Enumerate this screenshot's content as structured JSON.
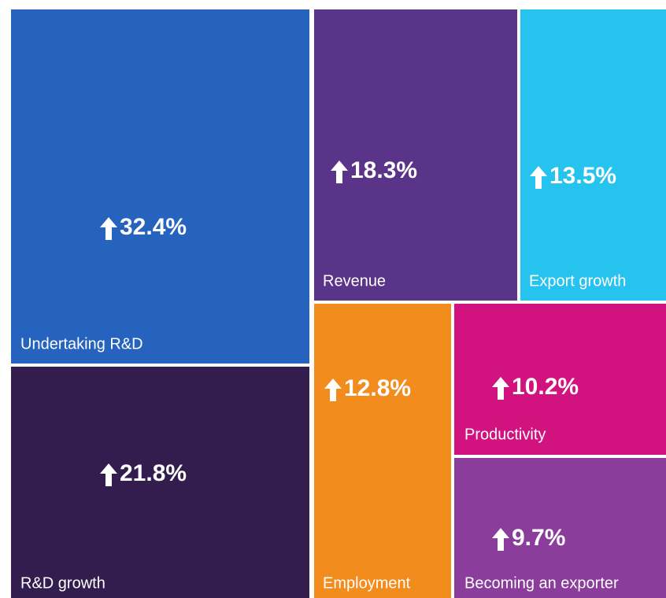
{
  "chart_data": {
    "type": "treemap",
    "categories": [
      "Undertaking R&D",
      "R&D growth",
      "Revenue",
      "Export growth",
      "Employment",
      "Productivity",
      "Becoming an exporter"
    ],
    "values": [
      32.4,
      21.8,
      18.3,
      13.5,
      12.8,
      10.2,
      9.7
    ],
    "value_labels": [
      "32.4%",
      "21.8%",
      "18.3%",
      "13.5%",
      "12.8%",
      "10.2%",
      "9.7%"
    ],
    "colors": [
      "#2563be",
      "#331d4f",
      "#5a3489",
      "#27c3ef",
      "#f28c1d",
      "#d2137f",
      "#8b3d9c"
    ]
  }
}
